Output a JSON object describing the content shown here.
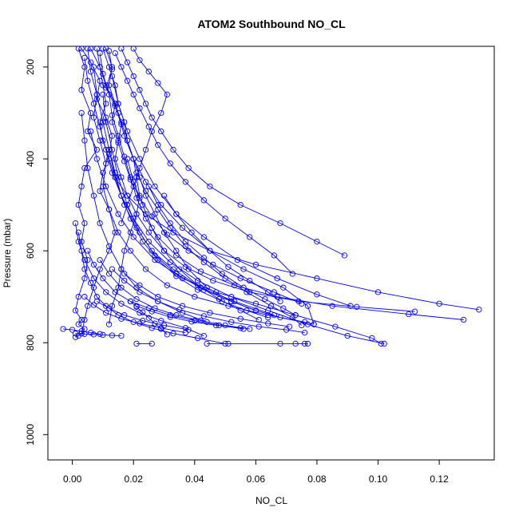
{
  "chart_data": {
    "type": "line",
    "title": "ATOM2 Southbound NO_CL",
    "xlabel": "NO_CL",
    "ylabel": "Pressure (mbar)",
    "xlim": [
      -0.008,
      0.138
    ],
    "ylim": [
      1055,
      155
    ],
    "y_reversed": true,
    "xticks": [
      0.0,
      0.02,
      0.04,
      0.06,
      0.08,
      0.1,
      0.12
    ],
    "xtick_labels": [
      "0.00",
      "0.02",
      "0.04",
      "0.06",
      "0.08",
      "0.10",
      "0.12"
    ],
    "yticks": [
      200,
      400,
      600,
      800,
      1000
    ],
    "ytick_labels": [
      "200",
      "400",
      "600",
      "800",
      "1000"
    ],
    "grid": false,
    "marker": "open-circle",
    "series_color": "#0000ff",
    "series": [
      {
        "x": [
          0.002,
          0.004,
          0.003,
          0.006,
          0.005,
          0.008,
          0.004,
          0.003,
          0.002,
          0.004,
          0.003,
          0.005,
          0.004,
          0.002,
          0.001,
          0.003,
          0.002,
          0.004,
          0.003,
          0.002,
          0.001
        ],
        "y": [
          160,
          200,
          250,
          300,
          340,
          380,
          420,
          460,
          500,
          540,
          580,
          620,
          660,
          700,
          730,
          750,
          760,
          770,
          780,
          785,
          788
        ]
      },
      {
        "x": [
          0.003,
          0.006,
          0.009,
          0.008,
          0.011,
          0.013,
          0.012,
          0.01,
          0.009,
          0.012,
          0.014,
          0.012,
          0.009,
          0.007,
          0.005,
          0.004,
          0.003
        ],
        "y": [
          160,
          190,
          230,
          270,
          310,
          350,
          390,
          430,
          470,
          510,
          560,
          600,
          640,
          680,
          720,
          750,
          780
        ]
      },
      {
        "x": [
          0.006,
          0.009,
          0.011,
          0.014,
          0.016,
          0.018,
          0.02,
          0.022,
          0.024,
          0.027,
          0.03,
          0.034,
          0.038,
          0.044,
          0.052,
          0.06,
          0.068,
          0.076
        ],
        "y": [
          160,
          200,
          240,
          280,
          320,
          360,
          400,
          440,
          480,
          520,
          560,
          600,
          640,
          680,
          710,
          730,
          745,
          755
        ]
      },
      {
        "x": [
          0.01,
          0.012,
          0.014,
          0.015,
          0.017,
          0.018,
          0.02,
          0.021,
          0.022,
          0.021,
          0.019,
          0.017,
          0.016,
          0.015,
          0.013,
          0.012
        ],
        "y": [
          160,
          200,
          240,
          280,
          320,
          360,
          400,
          440,
          480,
          520,
          560,
          600,
          640,
          680,
          720,
          760
        ]
      },
      {
        "x": [
          0.012,
          0.013,
          0.011,
          0.014,
          0.016,
          0.015,
          0.017,
          0.019,
          0.022,
          0.026,
          0.031,
          0.038,
          0.046,
          0.055,
          0.066,
          0.075
        ],
        "y": [
          165,
          205,
          245,
          285,
          325,
          365,
          405,
          445,
          485,
          525,
          565,
          600,
          630,
          660,
          690,
          715
        ]
      },
      {
        "x": [
          0.014,
          0.016,
          0.018,
          0.02,
          0.022,
          0.025,
          0.028,
          0.032,
          0.037,
          0.043,
          0.05,
          0.058,
          0.066,
          0.072
        ],
        "y": [
          170,
          200,
          230,
          260,
          290,
          330,
          370,
          410,
          450,
          490,
          530,
          570,
          610,
          650
        ]
      },
      {
        "x": [
          0.008,
          0.009,
          0.01,
          0.011,
          0.009,
          0.01,
          0.012,
          0.014,
          0.018,
          0.024,
          0.033,
          0.045,
          0.06,
          0.08,
          0.1,
          0.12,
          0.133
        ],
        "y": [
          160,
          200,
          240,
          280,
          320,
          360,
          400,
          440,
          480,
          520,
          560,
          600,
          630,
          660,
          690,
          715,
          728
        ]
      },
      {
        "x": [
          0.016,
          0.018,
          0.02,
          0.022,
          0.024,
          0.026,
          0.029,
          0.033,
          0.038,
          0.045,
          0.055,
          0.068,
          0.08,
          0.089
        ],
        "y": [
          160,
          190,
          220,
          250,
          280,
          310,
          340,
          380,
          420,
          460,
          500,
          540,
          580,
          610
        ]
      },
      {
        "x": [
          0.005,
          0.006,
          0.008,
          0.007,
          0.009,
          0.011,
          0.01,
          0.012,
          0.015,
          0.019,
          0.024,
          0.031,
          0.04,
          0.051,
          0.064,
          0.079
        ],
        "y": [
          160,
          210,
          260,
          310,
          360,
          410,
          460,
          510,
          560,
          600,
          640,
          675,
          700,
          720,
          740,
          760
        ]
      },
      {
        "x": [
          0.02,
          0.022,
          0.025,
          0.028,
          0.031,
          0.029,
          0.026,
          0.024,
          0.022,
          0.02,
          0.018,
          0.016
        ],
        "y": [
          160,
          185,
          210,
          235,
          260,
          300,
          340,
          380,
          420,
          460,
          500,
          540
        ]
      },
      {
        "x": [
          0.009,
          0.01,
          0.012,
          0.013,
          0.015,
          0.017,
          0.019,
          0.021,
          0.024,
          0.028,
          0.034,
          0.042,
          0.053,
          0.067,
          0.085,
          0.11,
          0.128
        ],
        "y": [
          170,
          215,
          260,
          305,
          350,
          395,
          440,
          485,
          530,
          570,
          610,
          645,
          675,
          700,
          720,
          738,
          750
        ]
      },
      {
        "x": [
          0.011,
          0.013,
          0.012,
          0.014,
          0.013,
          0.015,
          0.014,
          0.016,
          0.018,
          0.021,
          0.025,
          0.03,
          0.037,
          0.046,
          0.058,
          0.074,
          0.093,
          0.112
        ],
        "y": [
          160,
          200,
          240,
          280,
          320,
          360,
          400,
          440,
          480,
          520,
          560,
          600,
          635,
          665,
          690,
          710,
          722,
          732
        ]
      },
      {
        "x": [
          0.004,
          0.005,
          0.007,
          0.009,
          0.011,
          0.013,
          0.016,
          0.02,
          0.025,
          0.032,
          0.041,
          0.052,
          0.064,
          0.077,
          0.09,
          0.102
        ],
        "y": [
          180,
          230,
          280,
          330,
          380,
          430,
          480,
          530,
          580,
          625,
          665,
          700,
          730,
          760,
          785,
          802
        ]
      },
      {
        "x": [
          0.007,
          0.008,
          0.01,
          0.012,
          0.014,
          0.017,
          0.021,
          0.026,
          0.033,
          0.042,
          0.053,
          0.066
        ],
        "y": [
          200,
          260,
          320,
          380,
          440,
          500,
          550,
          600,
          640,
          680,
          710,
          740
        ]
      },
      {
        "x": [
          0.013,
          0.015,
          0.018,
          0.022,
          0.027,
          0.034,
          0.043,
          0.054,
          0.067,
          0.08,
          0.091
        ],
        "y": [
          220,
          280,
          340,
          400,
          460,
          520,
          570,
          620,
          660,
          695,
          720
        ]
      },
      {
        "x": [
          0.01,
          0.011,
          0.013,
          0.015,
          0.018,
          0.022,
          0.027,
          0.034,
          0.043,
          0.052,
          0.06
        ],
        "y": [
          260,
          320,
          380,
          440,
          500,
          560,
          610,
          650,
          685,
          710,
          730
        ]
      },
      {
        "x": [
          0.003,
          0.004,
          0.005,
          0.007,
          0.009,
          0.012,
          0.016,
          0.021,
          0.028,
          0.036,
          0.044
        ],
        "y": [
          300,
          360,
          420,
          480,
          540,
          590,
          640,
          680,
          710,
          735,
          755
        ]
      },
      {
        "x": [
          0.015,
          0.017,
          0.02,
          0.024,
          0.029,
          0.036,
          0.045,
          0.056,
          0.069,
          0.077,
          0.079
        ],
        "y": [
          300,
          350,
          400,
          450,
          500,
          550,
          600,
          640,
          680,
          720,
          760
        ]
      },
      {
        "x": [
          0.006,
          0.008,
          0.011,
          0.015,
          0.02,
          0.027,
          0.036,
          0.047,
          0.06,
          0.073,
          0.086,
          0.098,
          0.101
        ],
        "y": [
          340,
          400,
          460,
          520,
          570,
          620,
          660,
          690,
          715,
          740,
          765,
          790,
          802
        ]
      },
      {
        "x": [
          0.012,
          0.014,
          0.016,
          0.019,
          0.023,
          0.028,
          0.034,
          0.041,
          0.049,
          0.057,
          0.064
        ],
        "y": [
          380,
          430,
          480,
          530,
          580,
          620,
          655,
          685,
          710,
          730,
          745
        ]
      },
      {
        "x": [
          0.018,
          0.02,
          0.023,
          0.026,
          0.03,
          0.035,
          0.041,
          0.048,
          0.055,
          0.061
        ],
        "y": [
          400,
          450,
          500,
          550,
          600,
          640,
          675,
          705,
          730,
          750
        ]
      },
      {
        "x": [
          0.021,
          0.024,
          0.028,
          0.032,
          0.037,
          0.043,
          0.05,
          0.057,
          0.065,
          0.072,
          0.075
        ],
        "y": [
          430,
          470,
          510,
          550,
          590,
          625,
          660,
          690,
          720,
          745,
          762
        ]
      },
      {
        "x": [
          0.025,
          0.028,
          0.032,
          0.037,
          0.043,
          0.049,
          0.056,
          0.063,
          0.069,
          0.073
        ],
        "y": [
          460,
          500,
          540,
          580,
          615,
          650,
          680,
          705,
          725,
          740
        ]
      },
      {
        "x": [
          0.03,
          0.034,
          0.039,
          0.045,
          0.051,
          0.058,
          0.064,
          0.068
        ],
        "y": [
          480,
          520,
          560,
          600,
          635,
          665,
          690,
          710
        ]
      },
      {
        "x": [
          0.002,
          0.003,
          0.004,
          0.006,
          0.008,
          0.011,
          0.015,
          0.02,
          0.026,
          0.033,
          0.041,
          0.05
        ],
        "y": [
          560,
          600,
          640,
          670,
          700,
          720,
          740,
          755,
          768,
          780,
          790,
          802
        ]
      },
      {
        "x": [
          0.001,
          0.002,
          0.004,
          0.007,
          0.011,
          0.016,
          0.022,
          0.029,
          0.037,
          0.043
        ],
        "y": [
          540,
          580,
          620,
          660,
          690,
          715,
          735,
          752,
          768,
          785
        ]
      },
      {
        "x": [
          0.005,
          0.007,
          0.01,
          0.014,
          0.019,
          0.025,
          0.032,
          0.04,
          0.048,
          0.056
        ],
        "y": [
          600,
          630,
          660,
          690,
          710,
          725,
          740,
          752,
          762,
          770
        ]
      },
      {
        "x": [
          0.009,
          0.012,
          0.016,
          0.021,
          0.027,
          0.034,
          0.042,
          0.05,
          0.058
        ],
        "y": [
          620,
          650,
          680,
          705,
          725,
          740,
          752,
          762,
          770
        ]
      },
      {
        "x": [
          0.013,
          0.017,
          0.022,
          0.028,
          0.035,
          0.043,
          0.052,
          0.061,
          0.07,
          0.076
        ],
        "y": [
          640,
          665,
          690,
          710,
          728,
          742,
          755,
          765,
          772,
          778
        ]
      },
      {
        "x": [
          0.017,
          0.022,
          0.028,
          0.036,
          0.045,
          0.055,
          0.064,
          0.071
        ],
        "y": [
          650,
          675,
          700,
          720,
          735,
          748,
          758,
          765
        ]
      },
      {
        "x": [
          0.004,
          0.007,
          0.011,
          0.016,
          0.022,
          0.029,
          0.037
        ],
        "y": [
          700,
          718,
          735,
          748,
          758,
          768,
          778
        ]
      },
      {
        "x": [
          0.008,
          0.012,
          0.017,
          0.023,
          0.03,
          0.038
        ],
        "y": [
          710,
          725,
          740,
          752,
          762,
          772
        ]
      },
      {
        "x": [
          0.019,
          0.021,
          0.023,
          0.025,
          0.027,
          0.029,
          0.031
        ],
        "y": [
          710,
          722,
          734,
          746,
          758,
          770,
          782
        ]
      },
      {
        "x": [
          0.021,
          0.026,
          0.032,
          0.039,
          0.047,
          0.055
        ],
        "y": [
          720,
          732,
          744,
          754,
          762,
          768
        ]
      },
      {
        "x": [
          -0.003,
          0.0,
          0.003,
          0.006,
          0.009
        ],
        "y": [
          770,
          772,
          775,
          778,
          781
        ]
      },
      {
        "x": [
          0.001,
          0.004,
          0.007,
          0.01,
          0.013,
          0.016
        ],
        "y": [
          780,
          781,
          782,
          783,
          784,
          785
        ]
      },
      {
        "x": [
          0.021,
          0.026
        ],
        "y": [
          802,
          802
        ]
      },
      {
        "x": [
          0.044,
          0.051,
          0.068,
          0.073,
          0.076,
          0.077
        ],
        "y": [
          802,
          802,
          802,
          802,
          802,
          802
        ]
      }
    ]
  }
}
